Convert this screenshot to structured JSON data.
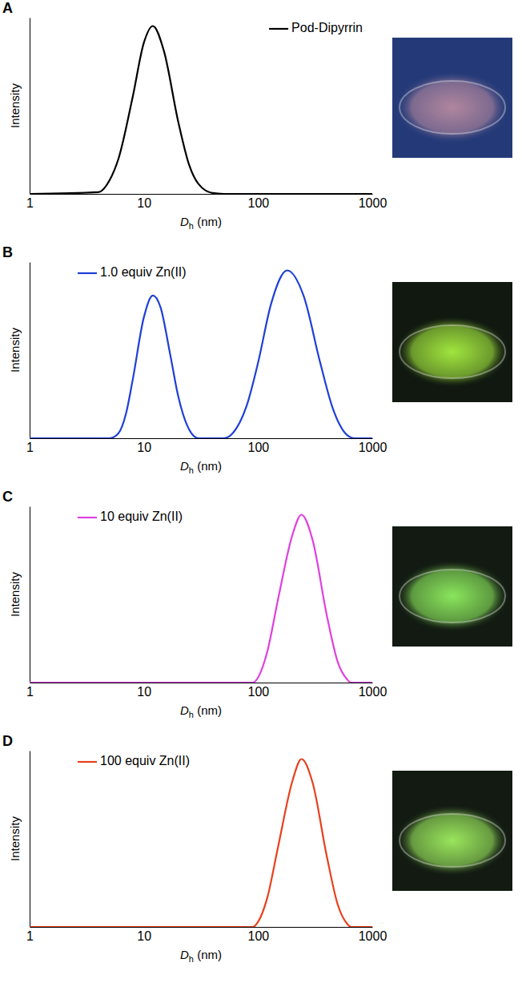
{
  "chart_data": [
    {
      "type": "line",
      "title": "A",
      "x_label": "Dh (nm)",
      "y_label": "Intensity",
      "log": "x",
      "xlim": [
        1,
        1000
      ],
      "xticks": [
        1,
        10,
        100,
        1000
      ],
      "ylim": [
        0,
        1.05
      ],
      "tick_labels": "x",
      "legend": "upper right",
      "x": [
        1,
        4,
        5,
        6,
        8,
        10,
        12,
        15,
        20,
        25,
        30,
        40,
        50,
        1000
      ],
      "series": [
        {
          "name": "Pod-Dipyrrin",
          "color": "#000000",
          "values": [
            0,
            0.01,
            0.08,
            0.21,
            0.58,
            0.9,
            1.0,
            0.85,
            0.43,
            0.17,
            0.06,
            0.005,
            0,
            0
          ]
        }
      ]
    },
    {
      "type": "line",
      "title": "B",
      "x_label": "Dh (nm)",
      "y_label": "Intensity",
      "log": "x",
      "xlim": [
        1,
        1000
      ],
      "xticks": [
        1,
        10,
        100,
        1000
      ],
      "ylim": [
        0,
        1.05
      ],
      "tick_labels": "x",
      "legend": "upper left",
      "x": [
        1,
        5,
        6,
        7,
        8,
        10,
        12,
        14,
        17,
        20,
        25,
        30,
        50,
        60,
        80,
        100,
        130,
        180,
        250,
        350,
        450,
        600,
        700,
        1000
      ],
      "series": [
        {
          "name": "1.0 equiv Zn(II)",
          "color": "#1f3fd8",
          "values": [
            0,
            0,
            0.03,
            0.15,
            0.35,
            0.72,
            0.85,
            0.78,
            0.5,
            0.25,
            0.05,
            0,
            0,
            0.03,
            0.2,
            0.45,
            0.8,
            1.0,
            0.85,
            0.45,
            0.18,
            0.02,
            0,
            0
          ]
        }
      ]
    },
    {
      "type": "line",
      "title": "C",
      "x_label": "Dh (nm)",
      "y_label": "Intensity",
      "log": "x",
      "xlim": [
        1,
        1000
      ],
      "xticks": [
        1,
        10,
        100,
        1000
      ],
      "ylim": [
        0,
        1.05
      ],
      "tick_labels": "x",
      "legend": "upper left",
      "x": [
        1,
        90,
        100,
        120,
        150,
        200,
        240,
        300,
        400,
        500,
        600,
        650,
        1000
      ],
      "series": [
        {
          "name": "10 equiv Zn(II)",
          "color": "#e040e0",
          "values": [
            0,
            0,
            0.03,
            0.18,
            0.5,
            0.88,
            1.0,
            0.85,
            0.4,
            0.12,
            0.02,
            0,
            0
          ]
        }
      ]
    },
    {
      "type": "line",
      "title": "D",
      "x_label": "Dh (nm)",
      "y_label": "Intensity",
      "log": "x",
      "xlim": [
        1,
        1000
      ],
      "xticks": [
        1,
        10,
        100,
        1000
      ],
      "ylim": [
        0,
        1.05
      ],
      "tick_labels": "x",
      "legend": "upper left",
      "x": [
        1,
        90,
        100,
        120,
        150,
        200,
        240,
        300,
        400,
        500,
        600,
        650,
        1000
      ],
      "series": [
        {
          "name": "100 equiv Zn(II)",
          "color": "#e8401c",
          "values": [
            0,
            0,
            0.03,
            0.17,
            0.48,
            0.87,
            1.0,
            0.86,
            0.42,
            0.13,
            0.02,
            0,
            0
          ]
        }
      ]
    }
  ]
}
